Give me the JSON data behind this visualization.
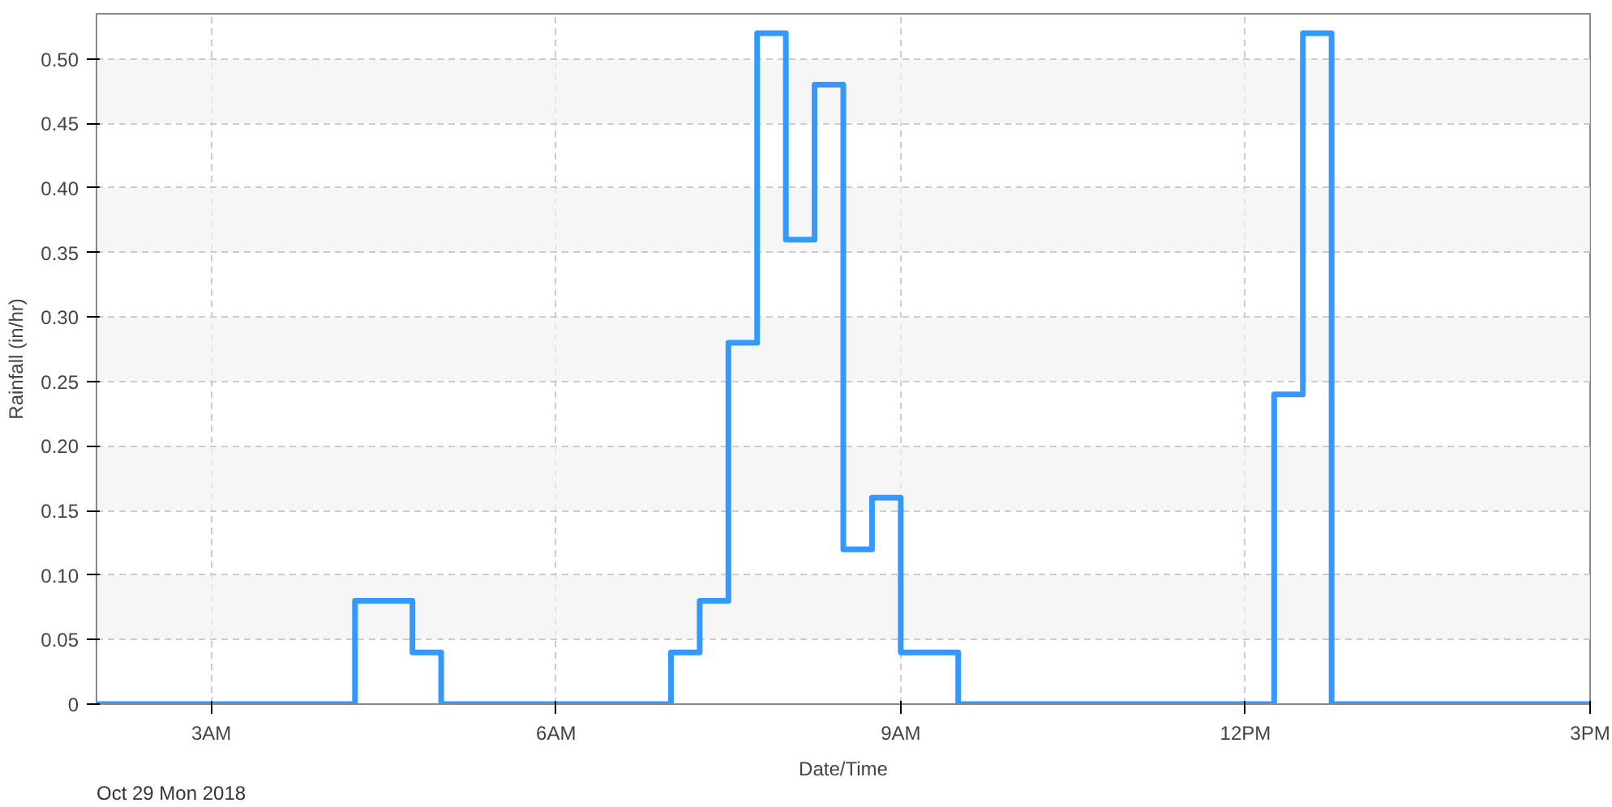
{
  "chart_data": {
    "type": "step",
    "xlabel": "Date/Time",
    "ylabel": "Rainfall (in/hr)",
    "annotations": [
      "Oct 29 Mon 2018"
    ],
    "x": [
      "2018-10-29T02:00",
      "2018-10-29T04:15",
      "2018-10-29T04:45",
      "2018-10-29T05:00",
      "2018-10-29T07:00",
      "2018-10-29T07:15",
      "2018-10-29T07:30",
      "2018-10-29T07:45",
      "2018-10-29T08:00",
      "2018-10-29T08:15",
      "2018-10-29T08:30",
      "2018-10-29T08:45",
      "2018-10-29T09:00",
      "2018-10-29T09:30",
      "2018-10-29T12:15",
      "2018-10-29T12:30",
      "2018-10-29T12:45",
      "2018-10-29T15:00"
    ],
    "series": [
      {
        "color": "#3399ff",
        "values": [
          0,
          0.08,
          0.04,
          0,
          0.04,
          0.08,
          0.28,
          0.52,
          0.36,
          0.48,
          0.12,
          0.16,
          0.04,
          0,
          0.24,
          0.52,
          0,
          0
        ]
      }
    ],
    "xlim": [
      "2018-10-29T02:00",
      "2018-10-29T15:00"
    ],
    "xticks": [
      {
        "value": "2018-10-29T03:00",
        "label": "3AM"
      },
      {
        "value": "2018-10-29T06:00",
        "label": "6AM"
      },
      {
        "value": "2018-10-29T09:00",
        "label": "9AM"
      },
      {
        "value": "2018-10-29T12:00",
        "label": "12PM"
      },
      {
        "value": "2018-10-29T15:00",
        "label": "3PM"
      }
    ],
    "ylim": [
      0,
      0.535
    ],
    "yticks": [
      0,
      0.05,
      {
        "value": 0.1,
        "label": "0.10"
      },
      0.15,
      {
        "value": 0.2,
        "label": "0.20"
      },
      0.25,
      {
        "value": 0.3,
        "label": "0.30"
      },
      0.35,
      {
        "value": 0.4,
        "label": "0.40"
      },
      0.45,
      {
        "value": 0.5,
        "label": "0.50"
      }
    ],
    "grid": true,
    "line_style": "solid",
    "marker": "none"
  }
}
